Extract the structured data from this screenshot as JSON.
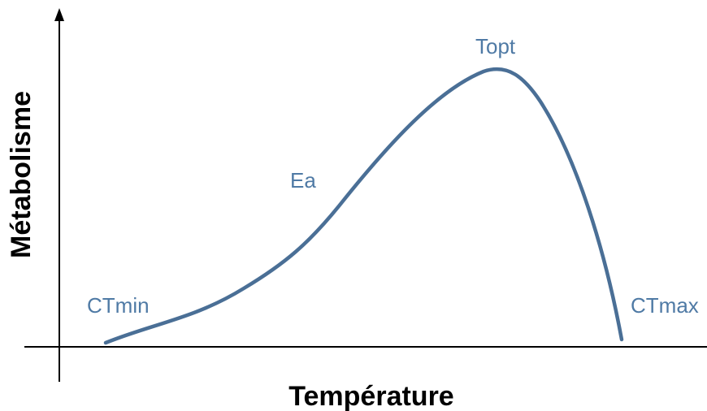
{
  "axes": {
    "y_label": "Métabolisme",
    "x_label": "Température"
  },
  "annotations": {
    "ctmin": "CTmin",
    "ea": "Ea",
    "topt": "Topt",
    "ctmax": "CTmax"
  }
}
